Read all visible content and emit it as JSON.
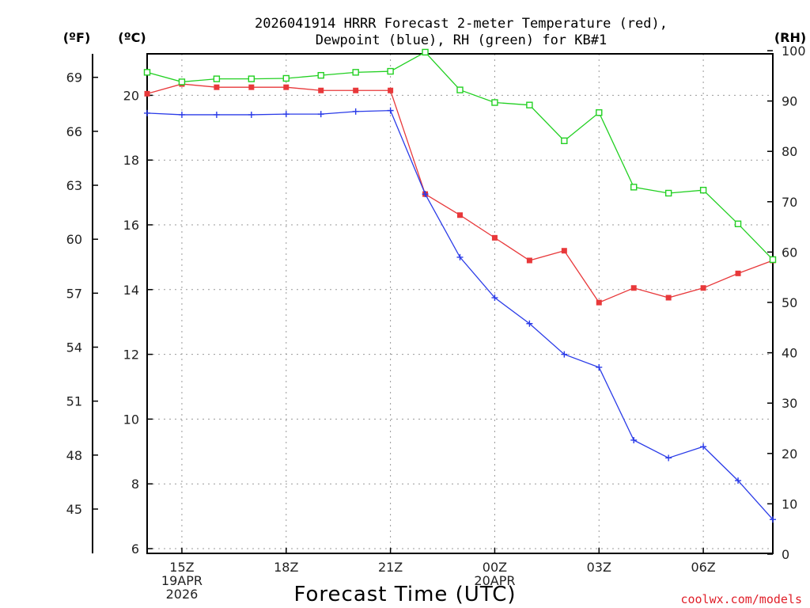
{
  "title_line1": "2026041914 HRRR Forecast 2-meter Temperature (red),",
  "title_line2": "Dewpoint (blue), RH (green) for KB#1",
  "unit_f": "(ºF)",
  "unit_c": "(ºC)",
  "unit_rh": "(RH)",
  "xlabel": "Forecast Time (UTC)",
  "credit": "coolwx.com/models",
  "colors": {
    "temperature": "#e8383a",
    "dewpoint": "#2a3be8",
    "rh": "#22d022"
  },
  "chart_data": {
    "type": "line",
    "x_hours": [
      14,
      15,
      16,
      17,
      18,
      19,
      20,
      21,
      22,
      23,
      24,
      25,
      26,
      27,
      28,
      29,
      30,
      31,
      32
    ],
    "x_tick_labels": [
      {
        "hour": 15,
        "lines": [
          "15Z",
          "19APR",
          "2026"
        ]
      },
      {
        "hour": 18,
        "lines": [
          "18Z"
        ]
      },
      {
        "hour": 21,
        "lines": [
          "21Z"
        ]
      },
      {
        "hour": 24,
        "lines": [
          "00Z",
          "20APR"
        ]
      },
      {
        "hour": 27,
        "lines": [
          "03Z"
        ]
      },
      {
        "hour": 30,
        "lines": [
          "06Z"
        ]
      }
    ],
    "xlim": [
      14,
      32
    ],
    "ylim_c": [
      6,
      21.5
    ],
    "y_ticks_c": [
      "6",
      "8",
      "10",
      "12",
      "14",
      "16",
      "18",
      "20"
    ],
    "y_ticks_f": [
      "45",
      "48",
      "51",
      "54",
      "57",
      "60",
      "63",
      "66",
      "69"
    ],
    "y_ticks_rh": [
      "0",
      "10",
      "20",
      "30",
      "40",
      "50",
      "60",
      "70",
      "80",
      "90",
      "100"
    ],
    "ylim_rh": [
      0,
      98
    ],
    "series": [
      {
        "name": "Temperature (red)",
        "axis": "c",
        "marker": "filled-square",
        "values": [
          20.05,
          20.35,
          20.25,
          20.25,
          20.25,
          20.15,
          20.15,
          20.15,
          16.95,
          16.3,
          15.6,
          14.9,
          15.2,
          13.6,
          14.05,
          13.75,
          14.05,
          14.5,
          14.9
        ]
      },
      {
        "name": "Dewpoint (blue)",
        "axis": "c",
        "marker": "plus",
        "values": [
          19.45,
          19.4,
          19.4,
          19.4,
          19.42,
          19.42,
          19.5,
          19.53,
          16.95,
          15.0,
          13.75,
          12.95,
          12.0,
          11.6,
          9.35,
          8.8,
          9.15,
          8.1,
          6.9
        ]
      },
      {
        "name": "RH (green)",
        "axis": "rh",
        "marker": "open-square",
        "values": [
          95.7,
          93.8,
          94.4,
          94.4,
          94.5,
          95.1,
          95.7,
          95.9,
          99.7,
          92.2,
          89.7,
          89.2,
          82.1,
          87.7,
          72.9,
          71.7,
          72.3,
          65.6,
          58.5
        ]
      }
    ]
  }
}
